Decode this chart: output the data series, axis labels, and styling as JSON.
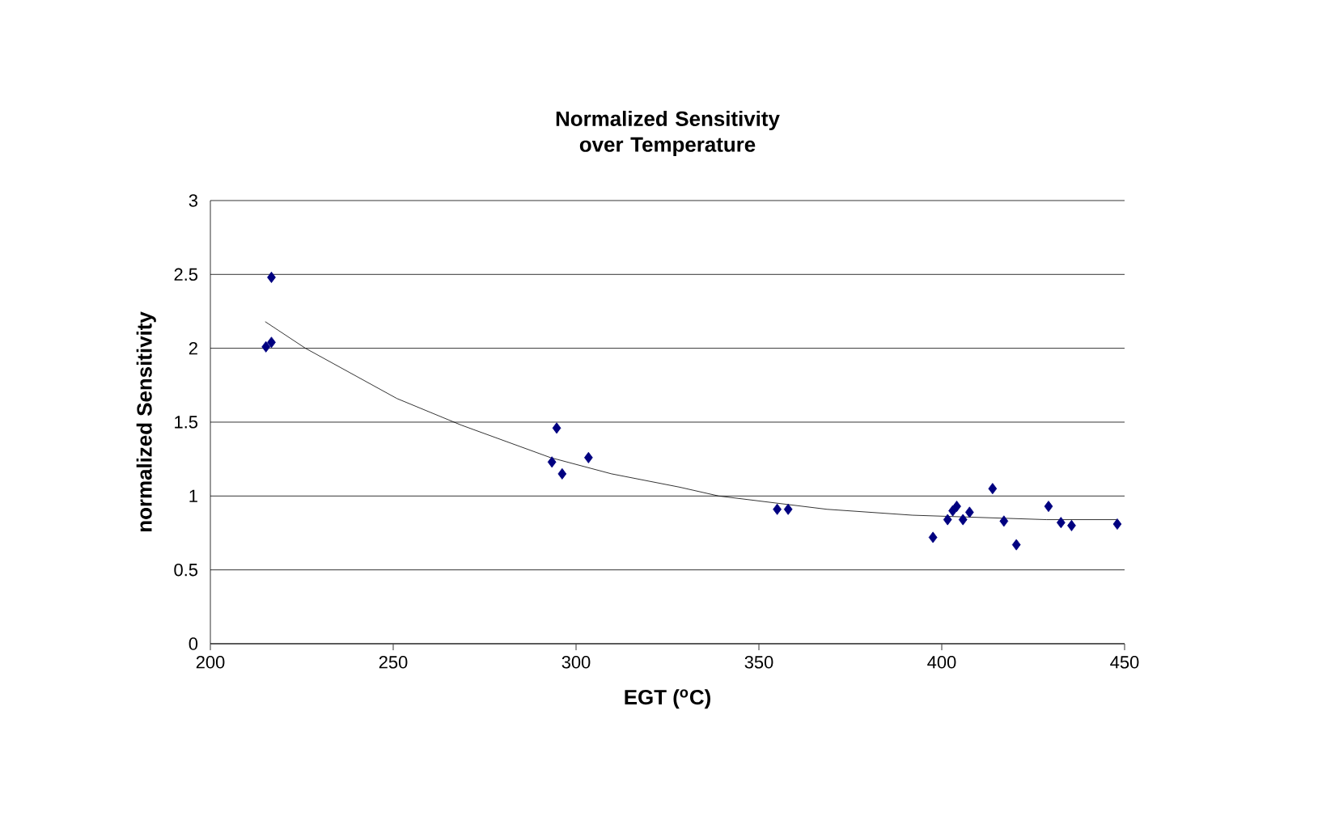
{
  "chart_data": {
    "type": "scatter",
    "title": "Normalized Sensitivity\nover Temperature",
    "xlabel": "EGT ($^{o}$C)",
    "ylabel": "normalized Sensitivity",
    "xlim": [
      200,
      450
    ],
    "xticks": [
      200,
      250,
      300,
      350,
      400,
      450
    ],
    "ylim": [
      0,
      3
    ],
    "yticks": [
      0,
      0.5,
      1,
      1.5,
      2,
      2.5,
      3
    ],
    "grid": "y",
    "series": [
      {
        "marker": "diamond",
        "color": "#000080",
        "x": [
          215.2,
          216.7,
          216.7,
          294.7,
          293.4,
          296.2,
          303.4,
          355,
          358,
          397.6,
          401.6,
          404.1,
          405.8,
          407.6,
          403,
          413.9,
          417,
          420.4,
          429.2,
          432.6,
          435.5,
          448
        ],
        "values": [
          2.01,
          2.04,
          2.48,
          1.46,
          1.23,
          1.15,
          1.26,
          0.91,
          0.91,
          0.72,
          0.84,
          0.93,
          0.84,
          0.89,
          0.9,
          1.05,
          0.83,
          0.67,
          0.93,
          0.82,
          0.8,
          0.81
        ]
      },
      {
        "type": "line",
        "marker": "none",
        "color": "#000000",
        "x": [
          215,
          226,
          251,
          268.6,
          293,
          309.7,
          328.3,
          339,
          368.6,
          392,
          428.6,
          448
        ],
        "values": [
          2.18,
          2.0,
          1.66,
          1.48,
          1.26,
          1.15,
          1.06,
          1.0,
          0.91,
          0.87,
          0.84,
          0.84
        ]
      }
    ]
  }
}
